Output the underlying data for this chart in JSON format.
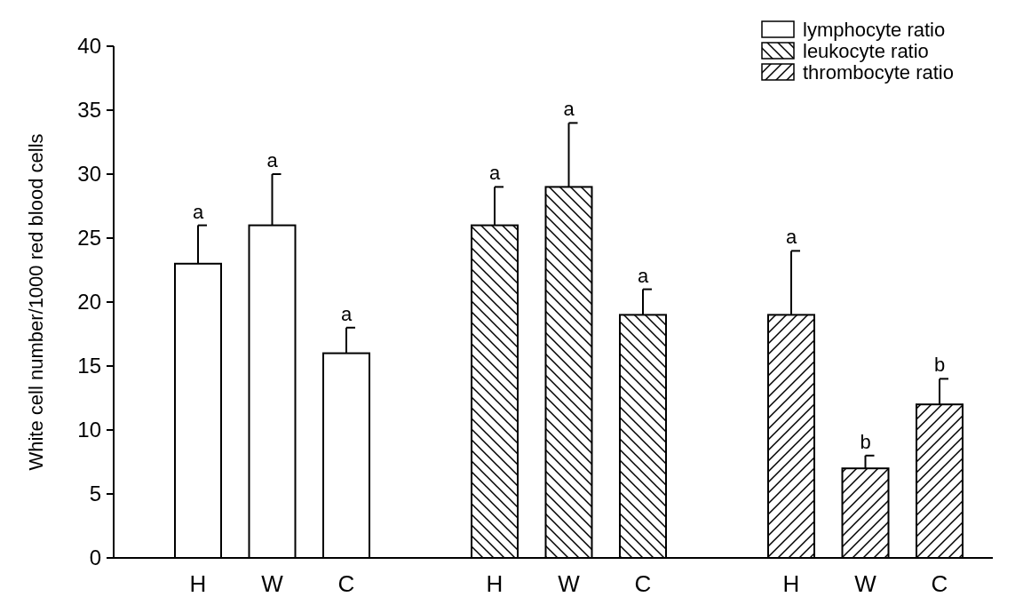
{
  "chart_data": {
    "type": "bar",
    "ylabel": "White cell number/1000 red blood cells",
    "categories": [
      "H",
      "W",
      "C",
      null,
      "H",
      "W",
      "C",
      null,
      "H",
      "W",
      "C"
    ],
    "series": [
      {
        "name": "lymphocyte ratio",
        "color": "#ffffff",
        "values": [
          23,
          26,
          16,
          null,
          null,
          null,
          null,
          null,
          null,
          null,
          null
        ],
        "errors": [
          [
            23,
            26
          ],
          [
            26,
            30
          ],
          [
            16,
            18
          ],
          null,
          null,
          null,
          null,
          null,
          null,
          null,
          null
        ]
      },
      {
        "name": "leukocyte ratio",
        "color": "#ffffff",
        "values": [
          null,
          null,
          null,
          null,
          26,
          29,
          19,
          null,
          null,
          null,
          null
        ],
        "errors": [
          null,
          null,
          null,
          null,
          [
            26,
            29
          ],
          [
            29,
            34
          ],
          [
            19,
            21
          ],
          null,
          null,
          null,
          null
        ]
      },
      {
        "name": "thrombocyte ratio",
        "color": "#ffffff",
        "values": [
          null,
          null,
          null,
          null,
          null,
          null,
          null,
          null,
          19,
          7,
          12
        ],
        "errors": [
          null,
          null,
          null,
          null,
          null,
          null,
          null,
          null,
          [
            19,
            24
          ],
          [
            7,
            8
          ],
          [
            12,
            14
          ]
        ]
      }
    ],
    "annotations": [
      "a",
      "a",
      "a",
      "a",
      "a",
      "a",
      "a",
      "b",
      "b"
    ],
    "ylim": [
      0,
      40
    ],
    "yticks": [
      0,
      5,
      10,
      15,
      20,
      25,
      30,
      35,
      40
    ],
    "legend": "top right"
  }
}
